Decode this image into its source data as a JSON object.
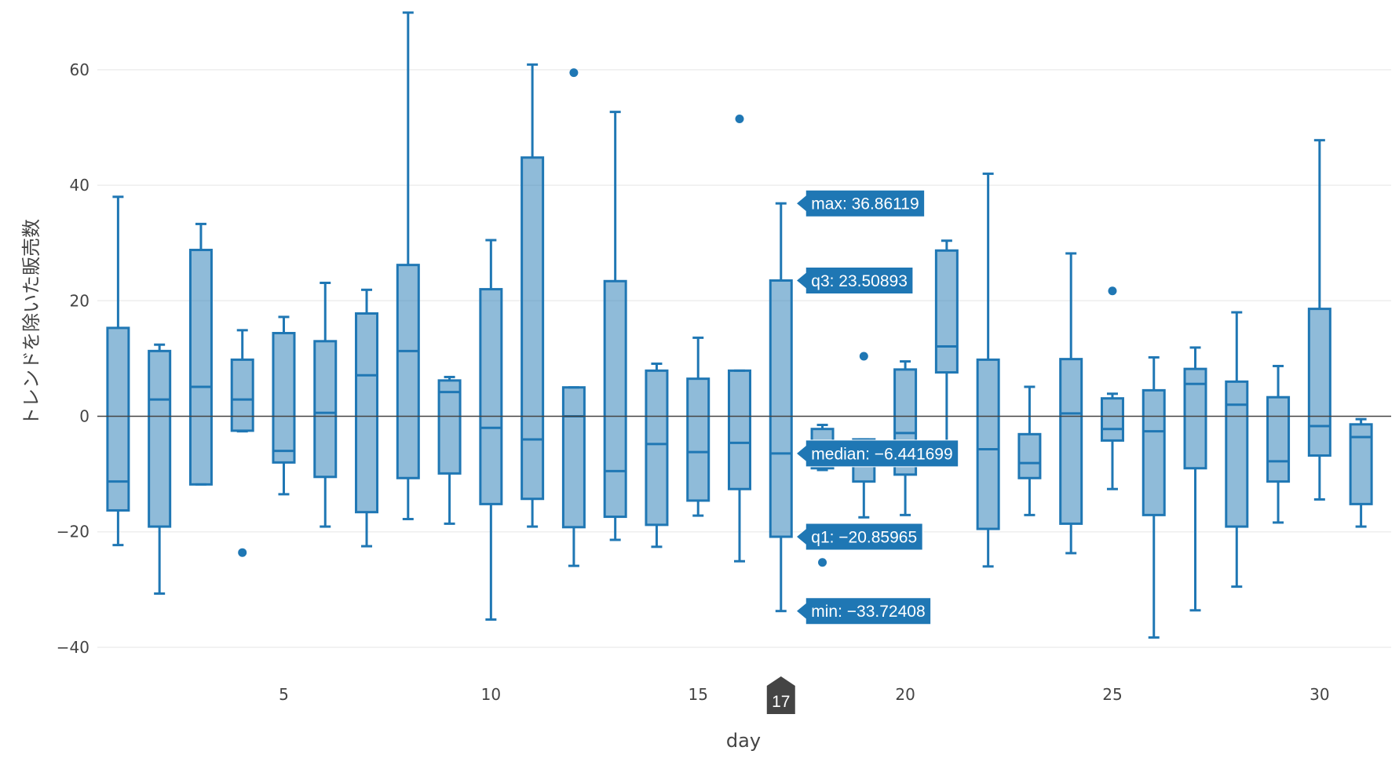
{
  "chart_data": {
    "type": "box",
    "xlabel": "day",
    "ylabel": "トレンドを除いた販売数",
    "xlim": [
      0.5,
      31.5
    ],
    "ylim": [
      -45,
      72
    ],
    "xticks": [
      5,
      10,
      15,
      20,
      25,
      30
    ],
    "yticks": [
      -40,
      -20,
      0,
      20,
      40,
      60
    ],
    "ytick_labels": [
      "−40",
      "−20",
      "0",
      "20",
      "40",
      "60"
    ],
    "grid": true,
    "zeroline": true,
    "colors": {
      "box": "#1f77b4",
      "grid": "#eeeeee",
      "zeroline": "#444444",
      "hover_axis_label": "#444444"
    },
    "boxes": [
      {
        "day": 1,
        "min": -22.3,
        "q1": -16.3,
        "median": -11.3,
        "q3": 15.3,
        "max": 38.0,
        "outliers": []
      },
      {
        "day": 2,
        "min": -30.7,
        "q1": -19.1,
        "median": 2.9,
        "q3": 11.3,
        "max": 12.4,
        "outliers": []
      },
      {
        "day": 3,
        "min": -11.8,
        "q1": -11.8,
        "median": 5.1,
        "q3": 28.8,
        "max": 33.3,
        "outliers": []
      },
      {
        "day": 4,
        "min": -2.6,
        "q1": -2.5,
        "median": 2.9,
        "q3": 9.8,
        "max": 14.9,
        "outliers": [
          -23.6
        ]
      },
      {
        "day": 5,
        "min": -13.5,
        "q1": -8.0,
        "median": -6.0,
        "q3": 14.4,
        "max": 17.2,
        "outliers": []
      },
      {
        "day": 6,
        "min": -19.1,
        "q1": -10.5,
        "median": 0.6,
        "q3": 13.0,
        "max": 23.1,
        "outliers": []
      },
      {
        "day": 7,
        "min": -22.5,
        "q1": -16.6,
        "median": 7.1,
        "q3": 17.8,
        "max": 21.9,
        "outliers": []
      },
      {
        "day": 8,
        "min": -17.8,
        "q1": -10.7,
        "median": 11.3,
        "q3": 26.2,
        "max": 69.9,
        "outliers": []
      },
      {
        "day": 9,
        "min": -18.6,
        "q1": -9.9,
        "median": 4.2,
        "q3": 6.2,
        "max": 6.8,
        "outliers": []
      },
      {
        "day": 10,
        "min": -35.2,
        "q1": -15.2,
        "median": -2.0,
        "q3": 22.0,
        "max": 30.5,
        "outliers": []
      },
      {
        "day": 11,
        "min": -19.1,
        "q1": -14.3,
        "median": -4.0,
        "q3": 44.8,
        "max": 60.9,
        "outliers": []
      },
      {
        "day": 12,
        "min": -25.9,
        "q1": -19.2,
        "median": 0.0,
        "q3": 5.0,
        "max": 5.0,
        "outliers": [
          59.5
        ]
      },
      {
        "day": 13,
        "min": -21.4,
        "q1": -17.4,
        "median": -9.5,
        "q3": 23.4,
        "max": 52.7,
        "outliers": []
      },
      {
        "day": 14,
        "min": -22.6,
        "q1": -18.8,
        "median": -4.8,
        "q3": 7.9,
        "max": 9.1,
        "outliers": []
      },
      {
        "day": 15,
        "min": -17.2,
        "q1": -14.6,
        "median": -6.2,
        "q3": 6.5,
        "max": 13.6,
        "outliers": []
      },
      {
        "day": 16,
        "min": -25.1,
        "q1": -12.6,
        "median": -4.6,
        "q3": 7.9,
        "max": 7.9,
        "outliers": [
          51.5
        ]
      },
      {
        "day": 17,
        "min": -33.72408,
        "q1": -20.85965,
        "median": -6.441699,
        "q3": 23.50893,
        "max": 36.86119,
        "outliers": []
      },
      {
        "day": 18,
        "min": -9.3,
        "q1": -9.0,
        "median": -5.0,
        "q3": -2.2,
        "max": -1.5,
        "outliers": [
          -25.3
        ]
      },
      {
        "day": 19,
        "min": -17.5,
        "q1": -11.3,
        "median": -7.5,
        "q3": -4.0,
        "max": -4.0,
        "outliers": [
          10.4
        ]
      },
      {
        "day": 20,
        "min": -17.1,
        "q1": -10.1,
        "median": -2.9,
        "q3": 8.1,
        "max": 9.5,
        "outliers": []
      },
      {
        "day": 21,
        "min": -5.0,
        "q1": 7.6,
        "median": 12.1,
        "q3": 28.7,
        "max": 30.4,
        "outliers": []
      },
      {
        "day": 22,
        "min": -26.0,
        "q1": -19.5,
        "median": -5.7,
        "q3": 9.8,
        "max": 42.0,
        "outliers": []
      },
      {
        "day": 23,
        "min": -17.1,
        "q1": -10.7,
        "median": -8.1,
        "q3": -3.1,
        "max": 5.1,
        "outliers": []
      },
      {
        "day": 24,
        "min": -23.7,
        "q1": -18.6,
        "median": 0.5,
        "q3": 9.9,
        "max": 28.2,
        "outliers": []
      },
      {
        "day": 25,
        "min": -12.6,
        "q1": -4.2,
        "median": -2.2,
        "q3": 3.1,
        "max": 3.9,
        "outliers": [
          21.7
        ]
      },
      {
        "day": 26,
        "min": -38.3,
        "q1": -17.1,
        "median": -2.6,
        "q3": 4.5,
        "max": 10.2,
        "outliers": []
      },
      {
        "day": 27,
        "min": -33.6,
        "q1": -9.0,
        "median": 5.6,
        "q3": 8.2,
        "max": 11.9,
        "outliers": []
      },
      {
        "day": 28,
        "min": -29.5,
        "q1": -19.1,
        "median": 2.0,
        "q3": 6.0,
        "max": 18.0,
        "outliers": []
      },
      {
        "day": 29,
        "min": -18.4,
        "q1": -11.3,
        "median": -7.8,
        "q3": 3.3,
        "max": 8.7,
        "outliers": []
      },
      {
        "day": 30,
        "min": -14.4,
        "q1": -6.8,
        "median": -1.7,
        "q3": 18.6,
        "max": 47.8,
        "outliers": []
      },
      {
        "day": 31,
        "min": -19.1,
        "q1": -15.2,
        "median": -3.6,
        "q3": -1.4,
        "max": -0.5,
        "outliers": []
      }
    ],
    "hover": {
      "day": 17,
      "axis_label": "17",
      "labels": [
        {
          "key": "max",
          "text": "max: 36.86119",
          "value": 36.86119
        },
        {
          "key": "q3",
          "text": "q3: 23.50893",
          "value": 23.50893
        },
        {
          "key": "median",
          "text": "median: −6.441699",
          "value": -6.441699
        },
        {
          "key": "q1",
          "text": "q1: −20.85965",
          "value": -20.85965
        },
        {
          "key": "min",
          "text": "min: −33.72408",
          "value": -33.72408
        }
      ]
    }
  }
}
